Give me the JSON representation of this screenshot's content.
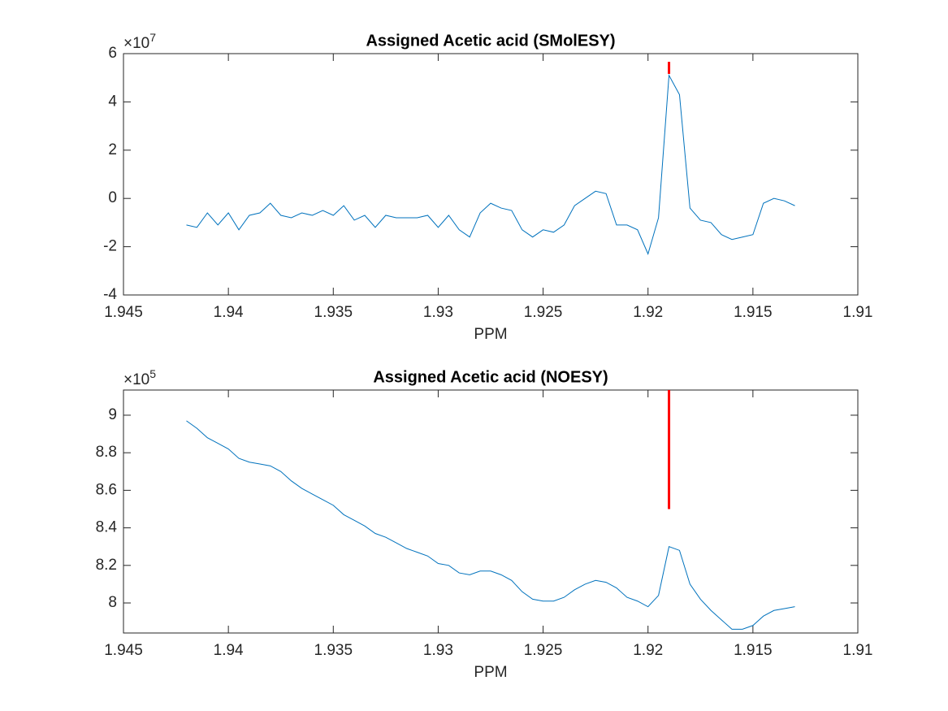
{
  "chart_data": [
    {
      "type": "line",
      "title": "Assigned Acetic acid (SMolESY)",
      "xlabel": "PPM",
      "y_exponent_label": {
        "base": "×10",
        "power": "7"
      },
      "x": [
        1.942,
        1.9415,
        1.941,
        1.9405,
        1.94,
        1.9395,
        1.939,
        1.9385,
        1.938,
        1.9375,
        1.937,
        1.9365,
        1.936,
        1.9355,
        1.935,
        1.9345,
        1.934,
        1.9335,
        1.933,
        1.9325,
        1.932,
        1.9315,
        1.931,
        1.9305,
        1.93,
        1.9295,
        1.929,
        1.9285,
        1.928,
        1.9275,
        1.927,
        1.9265,
        1.926,
        1.9255,
        1.925,
        1.9245,
        1.924,
        1.9235,
        1.923,
        1.9225,
        1.922,
        1.9215,
        1.921,
        1.9205,
        1.92,
        1.9195,
        1.919,
        1.9185,
        1.918,
        1.9175,
        1.917,
        1.9165,
        1.916,
        1.9155,
        1.915,
        1.9145,
        1.914,
        1.9135,
        1.913
      ],
      "series": [
        {
          "color": "#0072bd",
          "values": [
            -1.1,
            -1.2,
            -0.6,
            -1.1,
            -0.6,
            -1.3,
            -0.7,
            -0.6,
            -0.2,
            -0.7,
            -0.8,
            -0.6,
            -0.7,
            -0.5,
            -0.7,
            -0.3,
            -0.9,
            -0.7,
            -1.2,
            -0.7,
            -0.8,
            -0.8,
            -0.8,
            -0.7,
            -1.2,
            -0.7,
            -1.3,
            -1.6,
            -0.6,
            -0.2,
            -0.4,
            -0.5,
            -1.3,
            -1.6,
            -1.3,
            -1.4,
            -1.1,
            -0.3,
            0.0,
            0.3,
            0.2,
            -1.1,
            -1.1,
            -1.3,
            -2.3,
            -0.8,
            5.1,
            4.3,
            -0.4,
            -0.9,
            -1.0,
            -1.5,
            -1.7,
            -1.6,
            -1.5,
            -0.2,
            0.0,
            -0.1,
            -0.3
          ]
        }
      ],
      "marker": {
        "x": 1.919,
        "y": [
          5.16,
          5.66
        ],
        "color": "#ff0000"
      },
      "xlim": [
        1.945,
        1.91
      ],
      "xticks": [
        1.945,
        1.94,
        1.935,
        1.93,
        1.925,
        1.92,
        1.915,
        1.91
      ],
      "ylim": [
        -4,
        6
      ],
      "yticks": [
        -4,
        -2,
        0,
        2,
        4,
        6
      ],
      "grid": false
    },
    {
      "type": "line",
      "title": "Assigned Acetic acid (NOESY)",
      "xlabel": "PPM",
      "y_exponent_label": {
        "base": "×10",
        "power": "5"
      },
      "x": [
        1.942,
        1.9415,
        1.941,
        1.9405,
        1.94,
        1.9395,
        1.939,
        1.9385,
        1.938,
        1.9375,
        1.937,
        1.9365,
        1.936,
        1.9355,
        1.935,
        1.9345,
        1.934,
        1.9335,
        1.933,
        1.9325,
        1.932,
        1.9315,
        1.931,
        1.9305,
        1.93,
        1.9295,
        1.929,
        1.9285,
        1.928,
        1.9275,
        1.927,
        1.9265,
        1.926,
        1.9255,
        1.925,
        1.9245,
        1.924,
        1.9235,
        1.923,
        1.9225,
        1.922,
        1.9215,
        1.921,
        1.9205,
        1.92,
        1.9195,
        1.919,
        1.9185,
        1.918,
        1.9175,
        1.917,
        1.9165,
        1.916,
        1.9155,
        1.915,
        1.9145,
        1.914,
        1.9135,
        1.913
      ],
      "series": [
        {
          "color": "#0072bd",
          "values": [
            8.97,
            8.93,
            8.88,
            8.85,
            8.82,
            8.77,
            8.75,
            8.74,
            8.73,
            8.7,
            8.65,
            8.61,
            8.58,
            8.55,
            8.52,
            8.47,
            8.44,
            8.41,
            8.37,
            8.35,
            8.32,
            8.29,
            8.27,
            8.25,
            8.21,
            8.2,
            8.16,
            8.15,
            8.17,
            8.17,
            8.15,
            8.12,
            8.06,
            8.02,
            8.01,
            8.01,
            8.03,
            8.07,
            8.1,
            8.12,
            8.11,
            8.08,
            8.03,
            8.01,
            7.98,
            8.04,
            8.3,
            8.28,
            8.1,
            8.02,
            7.96,
            7.91,
            7.86,
            7.86,
            7.88,
            7.93,
            7.96,
            7.97,
            7.98
          ]
        }
      ],
      "marker": {
        "x": 1.919,
        "y": [
          8.5,
          9.134
        ],
        "color": "#ff0000"
      },
      "xlim": [
        1.945,
        1.91
      ],
      "xticks": [
        1.945,
        1.94,
        1.935,
        1.93,
        1.925,
        1.92,
        1.915,
        1.91
      ],
      "ylim": [
        7.84,
        9.134
      ],
      "yticks": [
        8,
        8.2,
        8.4,
        8.6,
        8.8,
        9
      ],
      "grid": false
    }
  ]
}
